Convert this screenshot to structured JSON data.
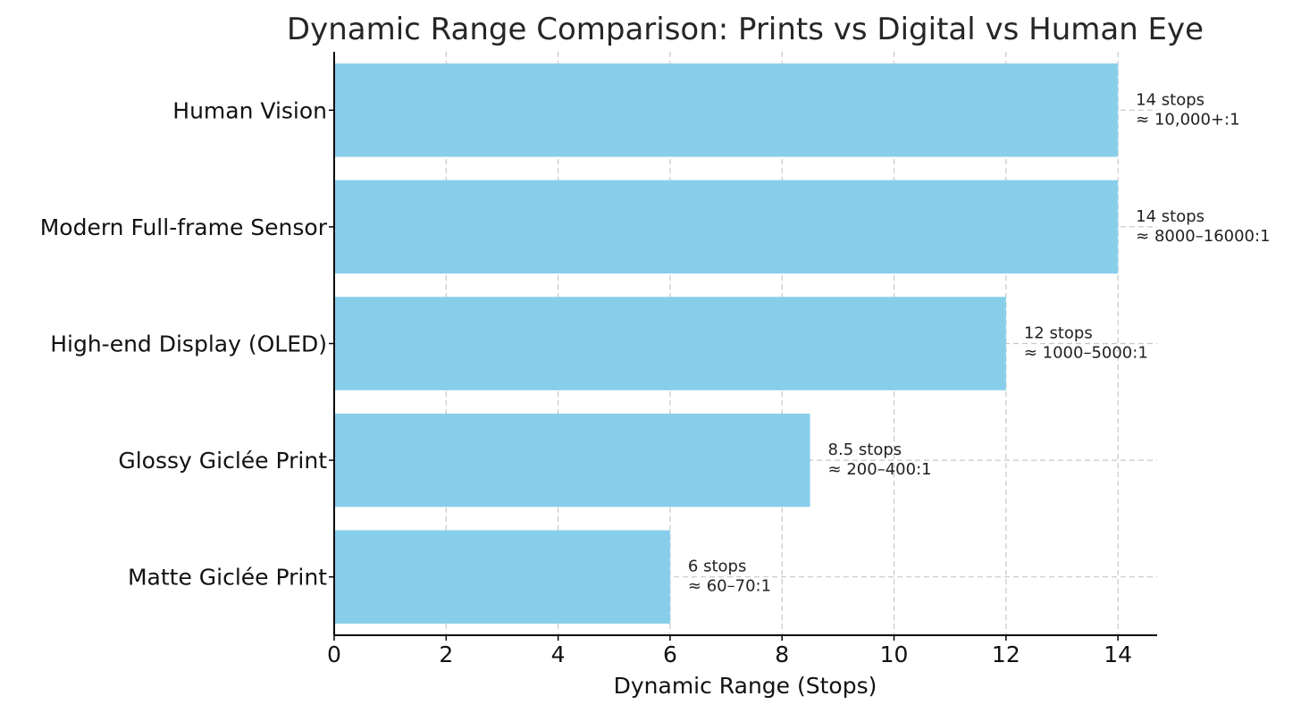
{
  "chart_data": {
    "type": "bar",
    "orientation": "horizontal",
    "title": "Dynamic Range Comparison: Prints vs Digital vs Human Eye",
    "xlabel": "Dynamic Range (Stops)",
    "ylabel": "",
    "xlim": [
      0,
      14.7
    ],
    "xticks": [
      0,
      2,
      4,
      6,
      8,
      10,
      12,
      14
    ],
    "grid": true,
    "bar_color": "#87CEEB",
    "categories": [
      "Human Vision",
      "Modern Full-frame Sensor",
      "High-end Display (OLED)",
      "Glossy Giclée Print",
      "Matte Giclée Print"
    ],
    "values": [
      14,
      14,
      12,
      8.5,
      6
    ],
    "annotations": [
      [
        "14 stops",
        "≈ 10,000+:1"
      ],
      [
        "14 stops",
        "≈ 8000–16000:1"
      ],
      [
        "12 stops",
        "≈ 1000–5000:1"
      ],
      [
        "8.5 stops",
        "≈ 200–400:1"
      ],
      [
        "6 stops",
        "≈ 60–70:1"
      ]
    ]
  }
}
